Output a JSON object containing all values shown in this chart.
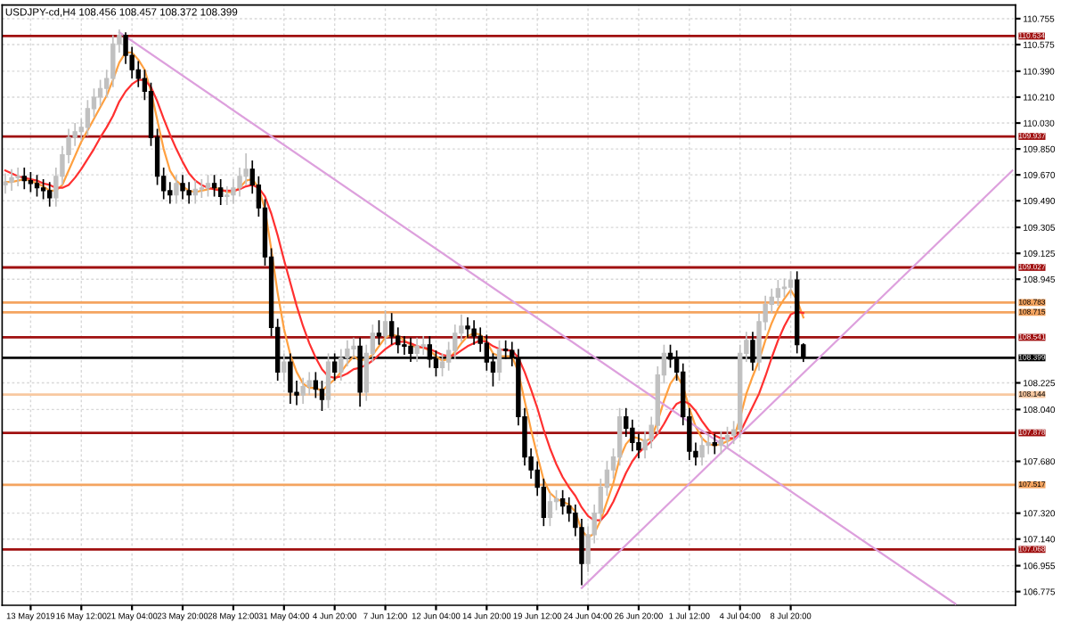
{
  "chart_data": {
    "type": "candlestick",
    "title": "USDJPY-cd,H4 108.456 108.457 108.372 108.399",
    "categories": [
      null,
      null,
      null,
      null,
      "13 May 2019",
      null,
      null,
      null,
      null,
      null,
      null,
      null,
      "16 May 12:00",
      null,
      null,
      null,
      null,
      null,
      null,
      null,
      "21 May 04:00",
      null,
      null,
      null,
      null,
      null,
      null,
      null,
      "23 May 20:00",
      null,
      null,
      null,
      null,
      null,
      null,
      null,
      "28 May 12:00",
      null,
      null,
      null,
      null,
      null,
      null,
      null,
      "31 May 04:00",
      null,
      null,
      null,
      null,
      null,
      null,
      null,
      "4 Jun 20:00",
      null,
      null,
      null,
      null,
      null,
      null,
      null,
      "7 Jun 12:00",
      null,
      null,
      null,
      null,
      null,
      null,
      null,
      "12 Jun 04:00",
      null,
      null,
      null,
      null,
      null,
      null,
      null,
      "14 Jun 20:00",
      null,
      null,
      null,
      null,
      null,
      null,
      null,
      "19 Jun 12:00",
      null,
      null,
      null,
      null,
      null,
      null,
      null,
      "24 Jun 04:00",
      null,
      null,
      null,
      null,
      null,
      null,
      null,
      "26 Jun 20:00",
      null,
      null,
      null,
      null,
      null,
      null,
      null,
      "1 Jul 12:00",
      null,
      null,
      null,
      null,
      null,
      null,
      null,
      "4 Jul 04:00",
      null,
      null,
      null,
      null,
      null,
      null,
      null,
      "8 Jul 20:00",
      null,
      null,
      null,
      null,
      null,
      null,
      null,
      null,
      null,
      null,
      null,
      null,
      null,
      null,
      null,
      null,
      null,
      null,
      null,
      null,
      null,
      null,
      null,
      null,
      null,
      null,
      null,
      null,
      null,
      null,
      null,
      null,
      null,
      null,
      null
    ],
    "ohlc": [
      [
        109.6,
        109.68,
        109.54,
        109.62
      ],
      [
        109.62,
        109.71,
        109.56,
        109.65
      ],
      [
        109.65,
        109.72,
        109.59,
        109.66
      ],
      [
        109.66,
        109.72,
        109.57,
        109.63
      ],
      [
        109.63,
        109.69,
        109.55,
        109.61
      ],
      [
        109.61,
        109.67,
        109.52,
        109.58
      ],
      [
        109.58,
        109.64,
        109.5,
        109.56
      ],
      [
        109.56,
        109.62,
        109.45,
        109.51
      ],
      [
        109.51,
        109.72,
        109.45,
        109.66
      ],
      [
        109.66,
        109.87,
        109.6,
        109.81
      ],
      [
        109.81,
        109.99,
        109.75,
        109.93
      ],
      [
        109.93,
        110.03,
        109.87,
        109.97
      ],
      [
        109.97,
        110.06,
        109.91,
        110.0
      ],
      [
        110.0,
        110.19,
        109.94,
        110.13
      ],
      [
        110.13,
        110.27,
        110.07,
        110.21
      ],
      [
        110.21,
        110.33,
        110.15,
        110.27
      ],
      [
        110.27,
        110.4,
        110.21,
        110.34
      ],
      [
        110.34,
        110.64,
        110.28,
        110.58
      ],
      [
        110.58,
        110.68,
        110.52,
        110.64
      ],
      [
        110.64,
        110.66,
        110.44,
        110.5
      ],
      [
        110.5,
        110.56,
        110.34,
        110.4
      ],
      [
        110.4,
        110.46,
        110.28,
        110.34
      ],
      [
        110.34,
        110.4,
        110.19,
        110.25
      ],
      [
        110.25,
        110.31,
        109.87,
        109.93
      ],
      [
        109.93,
        109.99,
        109.6,
        109.66
      ],
      [
        109.66,
        109.72,
        109.5,
        109.56
      ],
      [
        109.56,
        109.62,
        109.47,
        109.53
      ],
      [
        109.53,
        109.67,
        109.47,
        109.61
      ],
      [
        109.61,
        109.67,
        109.5,
        109.56
      ],
      [
        109.56,
        109.62,
        109.47,
        109.53
      ],
      [
        109.53,
        109.63,
        109.47,
        109.57
      ],
      [
        109.57,
        109.64,
        109.51,
        109.58
      ],
      [
        109.58,
        109.67,
        109.52,
        109.61
      ],
      [
        109.61,
        109.67,
        109.52,
        109.58
      ],
      [
        109.58,
        109.64,
        109.46,
        109.52
      ],
      [
        109.52,
        109.59,
        109.46,
        109.53
      ],
      [
        109.53,
        109.64,
        109.47,
        109.58
      ],
      [
        109.58,
        109.72,
        109.52,
        109.66
      ],
      [
        109.66,
        109.82,
        109.6,
        109.71
      ],
      [
        109.71,
        109.77,
        109.54,
        109.6
      ],
      [
        109.6,
        109.66,
        109.38,
        109.44
      ],
      [
        109.44,
        109.5,
        109.04,
        109.1
      ],
      [
        109.1,
        109.16,
        108.55,
        108.61
      ],
      [
        108.61,
        108.67,
        108.24,
        108.3
      ],
      [
        108.3,
        108.43,
        108.24,
        108.37
      ],
      [
        108.37,
        108.43,
        108.08,
        108.16
      ],
      [
        108.16,
        108.24,
        108.07,
        108.14
      ],
      [
        108.14,
        108.26,
        108.08,
        108.2
      ],
      [
        108.2,
        108.3,
        108.14,
        108.24
      ],
      [
        108.24,
        108.3,
        108.12,
        108.18
      ],
      [
        108.18,
        108.24,
        108.03,
        108.11
      ],
      [
        108.11,
        108.43,
        108.05,
        108.37
      ],
      [
        108.37,
        108.43,
        108.24,
        108.3
      ],
      [
        108.3,
        108.46,
        108.24,
        108.4
      ],
      [
        108.4,
        108.52,
        108.34,
        108.46
      ],
      [
        108.46,
        108.54,
        108.4,
        108.48
      ],
      [
        108.48,
        108.54,
        108.06,
        108.16
      ],
      [
        108.16,
        108.49,
        108.1,
        108.43
      ],
      [
        108.43,
        108.63,
        108.37,
        108.57
      ],
      [
        108.57,
        108.66,
        108.49,
        108.55
      ],
      [
        108.55,
        108.73,
        108.49,
        108.65
      ],
      [
        108.65,
        108.71,
        108.49,
        108.55
      ],
      [
        108.55,
        108.61,
        108.43,
        108.49
      ],
      [
        108.49,
        108.55,
        108.42,
        108.48
      ],
      [
        108.48,
        108.54,
        108.37,
        108.43
      ],
      [
        108.43,
        108.54,
        108.37,
        108.48
      ],
      [
        108.48,
        108.55,
        108.42,
        108.49
      ],
      [
        108.49,
        108.55,
        108.33,
        108.39
      ],
      [
        108.39,
        108.45,
        108.27,
        108.33
      ],
      [
        108.33,
        108.43,
        108.27,
        108.37
      ],
      [
        108.37,
        108.51,
        108.31,
        108.45
      ],
      [
        108.45,
        108.63,
        108.39,
        108.57
      ],
      [
        108.57,
        108.7,
        108.51,
        108.62
      ],
      [
        108.62,
        108.68,
        108.54,
        108.6
      ],
      [
        108.6,
        108.66,
        108.49,
        108.55
      ],
      [
        108.55,
        108.61,
        108.44,
        108.5
      ],
      [
        108.5,
        108.56,
        108.31,
        108.37
      ],
      [
        108.37,
        108.43,
        108.2,
        108.3
      ],
      [
        108.3,
        108.52,
        108.24,
        108.46
      ],
      [
        108.46,
        108.52,
        108.39,
        108.45
      ],
      [
        108.45,
        108.51,
        108.34,
        108.4
      ],
      [
        108.4,
        108.46,
        107.93,
        107.99
      ],
      [
        107.99,
        108.05,
        107.65,
        107.71
      ],
      [
        107.71,
        107.77,
        107.56,
        107.62
      ],
      [
        107.62,
        107.68,
        107.44,
        107.5
      ],
      [
        107.5,
        107.56,
        107.23,
        107.29
      ],
      [
        107.29,
        107.46,
        107.23,
        107.4
      ],
      [
        107.4,
        107.48,
        107.34,
        107.42
      ],
      [
        107.42,
        107.48,
        107.31,
        107.37
      ],
      [
        107.37,
        107.43,
        107.26,
        107.32
      ],
      [
        107.32,
        107.38,
        107.16,
        107.22
      ],
      [
        107.22,
        107.28,
        106.82,
        106.97
      ],
      [
        106.97,
        107.23,
        106.91,
        107.17
      ],
      [
        107.17,
        107.38,
        107.11,
        107.32
      ],
      [
        107.32,
        107.56,
        107.26,
        107.5
      ],
      [
        107.5,
        107.68,
        107.44,
        107.62
      ],
      [
        107.62,
        107.77,
        107.56,
        107.71
      ],
      [
        107.71,
        108.05,
        107.65,
        107.99
      ],
      [
        107.99,
        108.05,
        107.85,
        107.91
      ],
      [
        107.91,
        107.97,
        107.75,
        107.81
      ],
      [
        107.81,
        107.87,
        107.7,
        107.76
      ],
      [
        107.76,
        107.89,
        107.7,
        107.83
      ],
      [
        107.83,
        107.99,
        107.77,
        107.93
      ],
      [
        107.93,
        108.34,
        107.87,
        108.28
      ],
      [
        108.28,
        108.49,
        108.22,
        108.43
      ],
      [
        108.43,
        108.49,
        108.33,
        108.39
      ],
      [
        108.39,
        108.45,
        108.24,
        108.3
      ],
      [
        108.3,
        108.36,
        107.93,
        107.99
      ],
      [
        107.99,
        108.05,
        107.69,
        107.75
      ],
      [
        107.75,
        107.81,
        107.65,
        107.71
      ],
      [
        107.71,
        107.85,
        107.65,
        107.79
      ],
      [
        107.79,
        107.87,
        107.73,
        107.81
      ],
      [
        107.81,
        107.87,
        107.73,
        107.79
      ],
      [
        107.79,
        107.89,
        107.73,
        107.83
      ],
      [
        107.83,
        107.92,
        107.77,
        107.86
      ],
      [
        107.86,
        107.96,
        107.8,
        107.9
      ],
      [
        107.9,
        108.49,
        107.84,
        108.43
      ],
      [
        108.43,
        108.58,
        108.37,
        108.52
      ],
      [
        108.52,
        108.58,
        108.31,
        108.37
      ],
      [
        108.37,
        108.71,
        108.31,
        108.65
      ],
      [
        108.65,
        108.83,
        108.59,
        108.77
      ],
      [
        108.77,
        108.88,
        108.71,
        108.82
      ],
      [
        108.82,
        108.94,
        108.76,
        108.88
      ],
      [
        108.88,
        108.95,
        108.82,
        108.89
      ],
      [
        108.89,
        109.0,
        108.83,
        108.94
      ],
      [
        108.94,
        109.0,
        108.43,
        108.49
      ],
      [
        108.49,
        108.5,
        108.37,
        108.4
      ],
      null,
      null,
      null,
      null,
      null,
      null,
      null,
      null,
      null,
      null,
      null,
      null,
      null,
      null,
      null,
      null,
      null,
      null,
      null,
      null,
      null,
      null,
      null,
      null,
      null,
      null,
      null,
      null,
      null,
      null,
      null,
      null,
      null
    ],
    "colors": [
      "#c0c0c0",
      "#c0c0c0",
      "#c0c0c0",
      "#000000",
      "#000000",
      "#000000",
      "#000000",
      "#000000",
      "#c0c0c0",
      "#c0c0c0",
      "#c0c0c0",
      "#c0c0c0",
      "#c0c0c0",
      "#c0c0c0",
      "#c0c0c0",
      "#c0c0c0",
      "#c0c0c0",
      "#c0c0c0",
      "#c0c0c0",
      "#000000",
      "#000000",
      "#000000",
      "#000000",
      "#000000",
      "#000000",
      "#000000",
      "#000000",
      "#c0c0c0",
      "#000000",
      "#000000",
      "#c0c0c0",
      "#c0c0c0",
      "#c0c0c0",
      "#000000",
      "#000000",
      "#c0c0c0",
      "#c0c0c0",
      "#c0c0c0",
      "#c0c0c0",
      "#000000",
      "#000000",
      "#000000",
      "#000000",
      "#000000",
      "#c0c0c0",
      "#000000",
      "#000000",
      "#c0c0c0",
      "#c0c0c0",
      "#000000",
      "#000000",
      "#c0c0c0",
      "#000000",
      "#c0c0c0",
      "#c0c0c0",
      "#c0c0c0",
      "#000000",
      "#c0c0c0",
      "#c0c0c0",
      "#000000",
      "#c0c0c0",
      "#000000",
      "#000000",
      "#000000",
      "#000000",
      "#c0c0c0",
      "#c0c0c0",
      "#000000",
      "#000000",
      "#c0c0c0",
      "#c0c0c0",
      "#c0c0c0",
      "#c0c0c0",
      "#000000",
      "#000000",
      "#000000",
      "#000000",
      "#000000",
      "#c0c0c0",
      "#000000",
      "#000000",
      "#000000",
      "#000000",
      "#000000",
      "#000000",
      "#000000",
      "#c0c0c0",
      "#c0c0c0",
      "#000000",
      "#000000",
      "#000000",
      "#000000",
      "#c0c0c0",
      "#c0c0c0",
      "#c0c0c0",
      "#c0c0c0",
      "#c0c0c0",
      "#c0c0c0",
      "#000000",
      "#000000",
      "#000000",
      "#c0c0c0",
      "#c0c0c0",
      "#c0c0c0",
      "#c0c0c0",
      "#000000",
      "#000000",
      "#000000",
      "#000000",
      "#000000",
      "#c0c0c0",
      "#c0c0c0",
      "#000000",
      "#c0c0c0",
      "#c0c0c0",
      "#c0c0c0",
      "#c0c0c0",
      "#c0c0c0",
      "#000000",
      "#c0c0c0",
      "#c0c0c0",
      "#c0c0c0",
      "#c0c0c0",
      "#c0c0c0",
      "#c0c0c0",
      "#000000",
      "#000000",
      null,
      null,
      null,
      null,
      null,
      null,
      null,
      null,
      null,
      null,
      null,
      null,
      null,
      null,
      null,
      null,
      null,
      null,
      null,
      null,
      null,
      null,
      null,
      null,
      null,
      null,
      null,
      null,
      null,
      null,
      null,
      null,
      null
    ],
    "series": [
      {
        "type": "line",
        "color": "#ffa040",
        "values": [
          109.62,
          109.62,
          109.63,
          109.64,
          109.63,
          109.61,
          109.59,
          109.56,
          109.56,
          109.6,
          109.7,
          109.8,
          109.9,
          109.98,
          110.06,
          110.14,
          110.22,
          110.33,
          110.45,
          110.52,
          110.52,
          110.47,
          110.4,
          110.25,
          110.05,
          109.85,
          109.7,
          109.63,
          109.59,
          109.56,
          109.55,
          109.56,
          109.57,
          109.58,
          109.57,
          109.55,
          109.55,
          109.58,
          109.63,
          109.64,
          109.58,
          109.43,
          109.15,
          108.85,
          108.6,
          108.42,
          108.3,
          108.22,
          108.19,
          108.19,
          108.17,
          108.21,
          108.25,
          108.3,
          108.36,
          108.41,
          108.38,
          108.39,
          108.42,
          108.48,
          108.54,
          108.56,
          108.55,
          108.52,
          108.49,
          108.47,
          108.47,
          108.45,
          108.41,
          108.38,
          108.39,
          108.44,
          108.5,
          108.55,
          108.57,
          108.56,
          108.51,
          108.43,
          108.41,
          108.41,
          108.41,
          108.3,
          108.1,
          107.9,
          107.72,
          107.55,
          107.46,
          107.42,
          107.4,
          107.38,
          107.33,
          107.2,
          107.15,
          107.18,
          107.27,
          107.4,
          107.53,
          107.7,
          107.8,
          107.85,
          107.84,
          107.82,
          107.84,
          107.96,
          108.1,
          108.22,
          108.28,
          108.2,
          108.05,
          107.92,
          107.84,
          107.8,
          107.79,
          107.8,
          107.82,
          107.84,
          107.98,
          108.15,
          108.27,
          108.38,
          108.52,
          108.64,
          108.74,
          108.81,
          108.87,
          108.8,
          108.68,
          null,
          null,
          null,
          null,
          null,
          null,
          null,
          null,
          null,
          null,
          null,
          null,
          null,
          null,
          null,
          null,
          null,
          null,
          null,
          null,
          null,
          null,
          null,
          null,
          null,
          null,
          null,
          null,
          null,
          null,
          null,
          null,
          null
        ]
      },
      {
        "type": "line",
        "color": "#ff3030",
        "values": [
          109.7,
          109.68,
          109.66,
          109.65,
          109.64,
          109.63,
          109.61,
          109.6,
          109.58,
          109.58,
          109.6,
          109.65,
          109.71,
          109.78,
          109.85,
          109.93,
          110.0,
          110.08,
          110.18,
          110.25,
          110.3,
          110.33,
          110.33,
          110.28,
          110.18,
          110.06,
          109.95,
          109.85,
          109.76,
          109.68,
          109.63,
          109.6,
          109.58,
          109.57,
          109.56,
          109.56,
          109.56,
          109.57,
          109.59,
          109.6,
          109.58,
          109.52,
          109.4,
          109.25,
          109.08,
          108.92,
          108.76,
          108.62,
          108.5,
          108.4,
          108.32,
          108.27,
          108.26,
          108.27,
          108.29,
          108.32,
          108.33,
          108.35,
          108.38,
          108.42,
          108.46,
          108.49,
          108.51,
          108.51,
          108.5,
          108.48,
          108.47,
          108.46,
          108.44,
          108.42,
          108.41,
          108.42,
          108.45,
          108.48,
          108.5,
          108.52,
          108.51,
          108.48,
          108.46,
          108.45,
          108.45,
          108.4,
          108.3,
          108.18,
          108.05,
          107.9,
          107.77,
          107.66,
          107.57,
          107.5,
          107.44,
          107.36,
          107.3,
          107.27,
          107.27,
          107.32,
          107.4,
          107.5,
          107.6,
          107.68,
          107.74,
          107.78,
          107.82,
          107.87,
          107.94,
          108.02,
          108.08,
          108.1,
          108.08,
          108.03,
          107.96,
          107.9,
          107.86,
          107.84,
          107.84,
          107.84,
          107.88,
          107.97,
          108.06,
          108.15,
          108.27,
          108.4,
          108.52,
          108.62,
          108.7,
          108.72,
          108.71,
          null,
          null,
          null,
          null,
          null,
          null,
          null,
          null,
          null,
          null,
          null,
          null,
          null,
          null,
          null,
          null,
          null,
          null,
          null,
          null,
          null,
          null,
          null,
          null,
          null,
          null,
          null,
          null,
          null,
          null,
          null,
          null,
          null
        ]
      },
      {
        "type": "line",
        "color": "#dda0dd",
        "values": [
          null,
          null,
          null,
          null,
          null,
          null,
          null,
          null,
          null,
          null,
          null,
          null,
          null,
          null,
          null,
          null,
          null,
          null,
          110.66,
          null,
          null,
          null,
          null,
          null,
          null,
          null,
          null,
          null,
          null,
          null,
          null,
          null,
          null,
          null,
          null,
          null,
          null,
          null,
          null,
          null,
          null,
          null,
          null,
          null,
          null,
          null,
          null,
          null,
          null,
          null,
          null,
          null,
          null,
          null,
          null,
          null,
          null,
          null,
          null,
          null,
          null,
          null,
          null,
          null,
          null,
          null,
          null,
          null,
          null,
          null,
          null,
          null,
          null,
          null,
          null,
          null,
          null,
          null,
          null,
          null,
          null,
          null,
          null,
          null,
          null,
          null,
          null,
          null,
          null,
          null,
          null,
          null,
          null,
          null,
          null,
          null,
          null,
          null,
          null,
          null,
          null,
          null,
          null,
          null,
          null,
          null,
          null,
          null,
          null,
          null,
          null,
          null,
          null,
          null,
          null,
          null,
          null,
          null,
          null,
          null,
          null,
          null,
          null,
          null,
          null,
          null,
          null,
          null,
          null,
          null,
          null,
          null,
          null,
          null,
          null,
          null,
          null,
          null,
          null,
          null,
          null,
          null,
          null,
          null,
          null,
          null,
          null,
          null,
          null,
          null,
          106.69,
          null,
          null,
          null,
          null,
          null,
          null,
          null,
          null,
          null
        ]
      },
      {
        "type": "line",
        "color": "#dda0dd",
        "values": [
          null,
          null,
          null,
          null,
          null,
          null,
          null,
          null,
          null,
          null,
          null,
          null,
          null,
          null,
          null,
          null,
          null,
          null,
          null,
          null,
          null,
          null,
          null,
          null,
          null,
          null,
          null,
          null,
          null,
          null,
          null,
          null,
          null,
          null,
          null,
          null,
          null,
          null,
          null,
          null,
          null,
          null,
          null,
          null,
          null,
          null,
          null,
          null,
          null,
          null,
          null,
          null,
          null,
          null,
          null,
          null,
          null,
          null,
          null,
          null,
          null,
          null,
          null,
          null,
          null,
          null,
          null,
          null,
          null,
          null,
          null,
          null,
          null,
          null,
          null,
          null,
          null,
          null,
          null,
          null,
          null,
          null,
          null,
          null,
          null,
          null,
          null,
          null,
          null,
          null,
          null,
          106.8,
          null,
          null,
          null,
          null,
          null,
          null,
          null,
          null,
          null,
          null,
          null,
          null,
          null,
          null,
          null,
          null,
          null,
          null,
          null,
          null,
          null,
          null,
          null,
          null,
          null,
          null,
          null,
          null,
          null,
          null,
          null,
          null,
          null,
          null,
          null,
          null,
          null,
          null,
          null,
          null,
          null,
          null,
          null,
          null,
          null,
          null,
          null,
          null,
          null,
          null,
          null,
          null,
          null,
          null,
          null,
          null,
          null,
          null,
          null,
          null,
          null,
          null,
          null,
          null,
          null,
          null,
          null,
          109.7
        ]
      }
    ],
    "ylim": [
      106.68,
      110.85
    ],
    "yticks": [
      110.755,
      110.575,
      {
        "value": 110.39,
        "label": "110.390"
      },
      {
        "value": 110.21,
        "label": "110.210"
      },
      {
        "value": 110.03,
        "label": "110.030"
      },
      {
        "value": 109.85,
        "label": "109.850"
      },
      {
        "value": 109.67,
        "label": "109.670"
      },
      {
        "value": 109.49,
        "label": "109.490"
      },
      109.305,
      109.125,
      108.945,
      108.225,
      {
        "value": 108.04,
        "label": "108.040"
      },
      {
        "value": 107.68,
        "label": "107.680"
      },
      {
        "value": 107.32,
        "label": "107.320"
      },
      {
        "value": 107.14,
        "label": "107.140"
      },
      106.955,
      106.775
    ],
    "ref_lines": [
      {
        "axis": "y",
        "value": 110.634,
        "label": "110.634",
        "color": "#a01010"
      },
      {
        "axis": "y",
        "value": 109.937,
        "label": "109.937",
        "color": "#a01010"
      },
      {
        "axis": "y",
        "value": 109.027,
        "label": "109.027",
        "color": "#a01010"
      },
      {
        "axis": "y",
        "value": 108.783,
        "label": "108.783",
        "color": "#f4a460"
      },
      {
        "axis": "y",
        "value": 108.715,
        "label": "108.715",
        "color": "#f4a460"
      },
      {
        "axis": "y",
        "value": 108.541,
        "label": "108.541",
        "color": "#a01010"
      },
      {
        "axis": "y",
        "value": 108.399,
        "label": "108.399",
        "color": "#000000"
      },
      {
        "axis": "y",
        "value": 108.144,
        "label": "108.144",
        "color": "#f8c8a0"
      },
      {
        "axis": "y",
        "value": 107.878,
        "label": "107.878",
        "color": "#a01010"
      },
      {
        "axis": "y",
        "value": 107.517,
        "label": "107.517",
        "color": "#f4a460"
      },
      {
        "axis": "y",
        "value": 107.068,
        "label": "107.068",
        "color": "#a01010"
      }
    ],
    "grid": true
  }
}
